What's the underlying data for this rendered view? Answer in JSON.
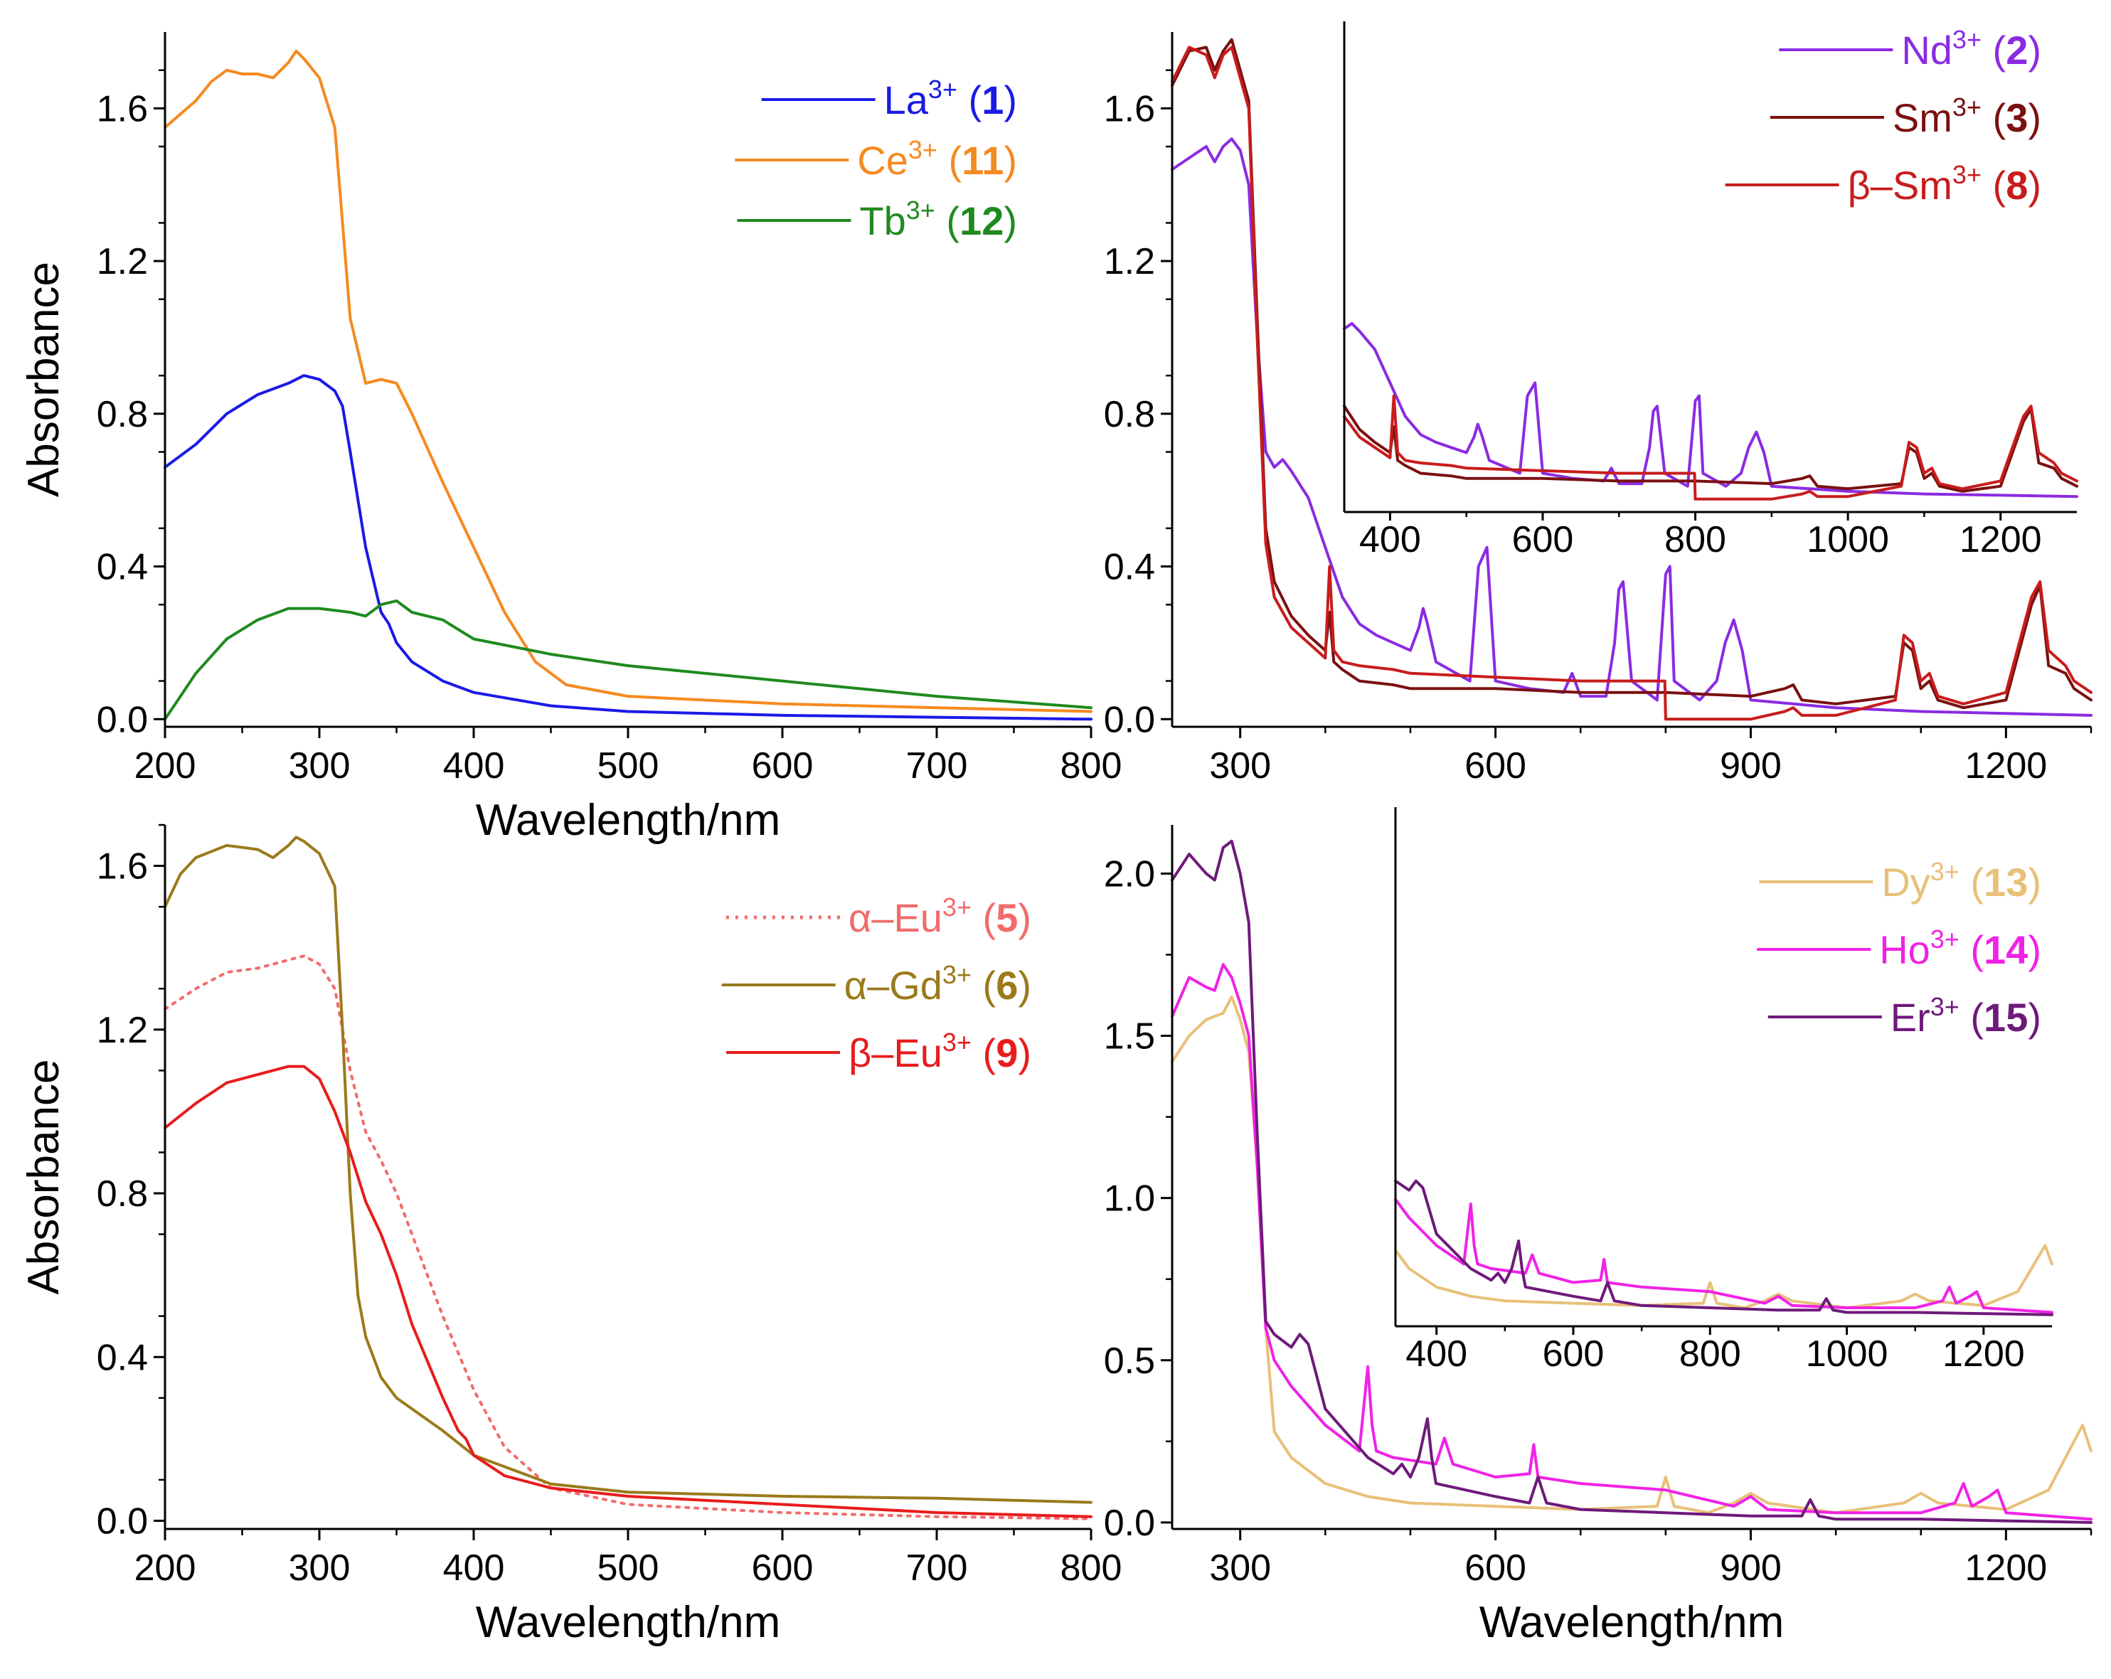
{
  "chart_data": [
    {
      "type": "line",
      "panel": "top-left",
      "xlabel": "Wavelength/nm",
      "ylabel": "Absorbance",
      "xlim": [
        200,
        800
      ],
      "ylim": [
        -0.02,
        1.8
      ],
      "xticks": [
        200,
        300,
        400,
        500,
        600,
        700,
        800
      ],
      "xtick_labels": [
        "200",
        "300",
        "400",
        "500",
        "600",
        "700",
        "800"
      ],
      "yticks": [
        0.0,
        0.4,
        0.8,
        1.2,
        1.6
      ],
      "ytick_labels": [
        "0.0",
        "0.4",
        "0.8",
        "1.2",
        "1.6"
      ],
      "legend_position": "top-right",
      "series": [
        {
          "name": "La",
          "sup": "3+",
          "num": "1",
          "prefix": "",
          "color": "#1a1ae6",
          "dash": "",
          "x": [
            200,
            220,
            240,
            260,
            280,
            290,
            300,
            310,
            315,
            320,
            330,
            340,
            345,
            350,
            360,
            380,
            400,
            450,
            500,
            600,
            700,
            800
          ],
          "y": [
            0.66,
            0.72,
            0.8,
            0.85,
            0.88,
            0.9,
            0.89,
            0.86,
            0.82,
            0.7,
            0.45,
            0.28,
            0.25,
            0.2,
            0.15,
            0.1,
            0.07,
            0.035,
            0.02,
            0.01,
            0.005,
            0.0
          ]
        },
        {
          "name": "Ce",
          "sup": "3+",
          "num": "11",
          "prefix": "",
          "color": "#f58a1f",
          "dash": "",
          "x": [
            200,
            220,
            230,
            240,
            250,
            260,
            270,
            280,
            285,
            290,
            300,
            310,
            315,
            320,
            330,
            340,
            350,
            360,
            380,
            400,
            420,
            440,
            460,
            500,
            600,
            700,
            800
          ],
          "y": [
            1.55,
            1.62,
            1.67,
            1.7,
            1.69,
            1.69,
            1.68,
            1.72,
            1.75,
            1.73,
            1.68,
            1.55,
            1.3,
            1.05,
            0.88,
            0.89,
            0.88,
            0.8,
            0.62,
            0.45,
            0.28,
            0.15,
            0.09,
            0.06,
            0.04,
            0.03,
            0.02
          ]
        },
        {
          "name": "Tb",
          "sup": "3+",
          "num": "12",
          "prefix": "",
          "color": "#1f8a1f",
          "dash": "",
          "x": [
            200,
            210,
            220,
            240,
            260,
            280,
            300,
            320,
            330,
            340,
            350,
            360,
            380,
            400,
            450,
            500,
            600,
            700,
            800
          ],
          "y": [
            0.0,
            0.06,
            0.12,
            0.21,
            0.26,
            0.29,
            0.29,
            0.28,
            0.27,
            0.3,
            0.31,
            0.28,
            0.26,
            0.21,
            0.17,
            0.14,
            0.1,
            0.06,
            0.03
          ]
        }
      ]
    },
    {
      "type": "line",
      "panel": "top-right",
      "xlabel": "",
      "ylabel": "",
      "xlim": [
        220,
        1300
      ],
      "ylim": [
        -0.02,
        1.8
      ],
      "xticks": [
        300,
        600,
        900,
        1200
      ],
      "xtick_labels": [
        "300",
        "600",
        "900",
        "1200"
      ],
      "yticks": [
        0.0,
        0.4,
        0.8,
        1.2,
        1.6
      ],
      "ytick_labels": [
        "0.0",
        "0.4",
        "0.8",
        "1.2",
        "1.6"
      ],
      "legend_position": "top-right",
      "inset": {
        "xlim": [
          340,
          1300
        ],
        "xticks": [
          400,
          600,
          800,
          1000,
          1200
        ],
        "xtick_labels": [
          "400",
          "600",
          "800",
          "1000",
          "1200"
        ]
      },
      "series": [
        {
          "name": "Nd",
          "sup": "3+",
          "num": "2",
          "prefix": "",
          "color": "#8a2be2",
          "dash": "",
          "x": [
            220,
            240,
            260,
            270,
            280,
            290,
            300,
            310,
            320,
            330,
            340,
            350,
            360,
            380,
            400,
            420,
            440,
            460,
            480,
            500,
            510,
            515,
            520,
            530,
            570,
            580,
            590,
            600,
            640,
            680,
            690,
            700,
            730,
            740,
            745,
            750,
            760,
            790,
            800,
            805,
            810,
            840,
            860,
            870,
            880,
            890,
            900,
            950,
            1000,
            1100,
            1200,
            1300
          ],
          "y": [
            1.44,
            1.47,
            1.5,
            1.46,
            1.5,
            1.52,
            1.49,
            1.4,
            1.0,
            0.7,
            0.66,
            0.68,
            0.65,
            0.58,
            0.45,
            0.32,
            0.25,
            0.22,
            0.2,
            0.18,
            0.24,
            0.29,
            0.25,
            0.15,
            0.1,
            0.4,
            0.45,
            0.1,
            0.08,
            0.07,
            0.12,
            0.06,
            0.06,
            0.2,
            0.34,
            0.36,
            0.1,
            0.05,
            0.38,
            0.4,
            0.1,
            0.05,
            0.1,
            0.2,
            0.26,
            0.18,
            0.05,
            0.04,
            0.03,
            0.02,
            0.015,
            0.01
          ]
        },
        {
          "name": "Sm",
          "sup": "3+",
          "num": "3",
          "prefix": "",
          "color": "#7a1010",
          "dash": "",
          "x": [
            220,
            240,
            260,
            270,
            280,
            290,
            300,
            310,
            320,
            330,
            340,
            360,
            380,
            400,
            405,
            410,
            420,
            440,
            480,
            500,
            600,
            700,
            800,
            900,
            940,
            950,
            960,
            1000,
            1070,
            1080,
            1090,
            1100,
            1110,
            1120,
            1150,
            1200,
            1230,
            1240,
            1250,
            1270,
            1280,
            1300
          ],
          "y": [
            1.66,
            1.75,
            1.76,
            1.7,
            1.75,
            1.78,
            1.7,
            1.62,
            1.05,
            0.5,
            0.36,
            0.27,
            0.22,
            0.18,
            0.28,
            0.15,
            0.13,
            0.1,
            0.09,
            0.08,
            0.08,
            0.07,
            0.07,
            0.06,
            0.08,
            0.09,
            0.05,
            0.04,
            0.06,
            0.2,
            0.18,
            0.08,
            0.1,
            0.05,
            0.03,
            0.05,
            0.3,
            0.35,
            0.14,
            0.12,
            0.08,
            0.05
          ]
        },
        {
          "name": "Sm",
          "sup": "3+",
          "num": "8",
          "prefix": "β–",
          "color": "#c81c1c",
          "dash": "",
          "x": [
            220,
            240,
            260,
            270,
            280,
            290,
            300,
            310,
            320,
            330,
            340,
            360,
            380,
            400,
            405,
            410,
            420,
            440,
            480,
            500,
            600,
            700,
            799,
            800,
            850,
            900,
            940,
            950,
            960,
            1000,
            1070,
            1080,
            1090,
            1100,
            1110,
            1120,
            1150,
            1200,
            1230,
            1240,
            1250,
            1270,
            1280,
            1300
          ],
          "y": [
            1.67,
            1.76,
            1.74,
            1.68,
            1.74,
            1.76,
            1.68,
            1.6,
            1.0,
            0.46,
            0.32,
            0.24,
            0.2,
            0.16,
            0.4,
            0.18,
            0.15,
            0.14,
            0.13,
            0.12,
            0.11,
            0.1,
            0.1,
            0.0,
            0.0,
            0.0,
            0.02,
            0.03,
            0.01,
            0.01,
            0.05,
            0.22,
            0.2,
            0.1,
            0.12,
            0.06,
            0.04,
            0.07,
            0.32,
            0.36,
            0.18,
            0.14,
            0.1,
            0.07
          ]
        }
      ]
    },
    {
      "type": "line",
      "panel": "bottom-left",
      "xlabel": "Wavelength/nm",
      "ylabel": "Absorbance",
      "xlim": [
        200,
        800
      ],
      "ylim": [
        -0.02,
        1.7
      ],
      "xticks": [
        200,
        300,
        400,
        500,
        600,
        700,
        800
      ],
      "xtick_labels": [
        "200",
        "300",
        "400",
        "500",
        "600",
        "700",
        "800"
      ],
      "yticks": [
        0.0,
        0.4,
        0.8,
        1.2,
        1.6
      ],
      "ytick_labels": [
        "0.0",
        "0.4",
        "0.8",
        "1.2",
        "1.6"
      ],
      "legend_position": "top-right",
      "series": [
        {
          "name": "Eu",
          "sup": "3+",
          "num": "5",
          "prefix": "α–",
          "color": "#f26b6b",
          "dash": "4 9",
          "x": [
            200,
            220,
            240,
            260,
            280,
            290,
            300,
            310,
            320,
            330,
            340,
            350,
            360,
            380,
            400,
            420,
            450,
            500,
            600,
            700,
            800
          ],
          "y": [
            1.25,
            1.3,
            1.34,
            1.35,
            1.37,
            1.38,
            1.36,
            1.3,
            1.1,
            0.95,
            0.88,
            0.8,
            0.7,
            0.5,
            0.32,
            0.18,
            0.08,
            0.04,
            0.02,
            0.01,
            0.005
          ]
        },
        {
          "name": "Gd",
          "sup": "3+",
          "num": "6",
          "prefix": "α–",
          "color": "#9a7a1a",
          "dash": "",
          "x": [
            200,
            210,
            220,
            240,
            260,
            270,
            280,
            285,
            290,
            300,
            310,
            315,
            320,
            325,
            330,
            340,
            350,
            380,
            400,
            450,
            500,
            600,
            700,
            800
          ],
          "y": [
            1.5,
            1.58,
            1.62,
            1.65,
            1.64,
            1.62,
            1.65,
            1.67,
            1.66,
            1.63,
            1.55,
            1.2,
            0.8,
            0.55,
            0.45,
            0.35,
            0.3,
            0.22,
            0.16,
            0.09,
            0.07,
            0.06,
            0.055,
            0.045
          ]
        },
        {
          "name": "Eu",
          "sup": "3+",
          "num": "9",
          "prefix": "β–",
          "color": "#e81c1c",
          "dash": "",
          "x": [
            200,
            220,
            240,
            260,
            280,
            290,
            300,
            310,
            320,
            330,
            340,
            350,
            360,
            380,
            390,
            395,
            400,
            420,
            450,
            500,
            600,
            700,
            800
          ],
          "y": [
            0.96,
            1.02,
            1.07,
            1.09,
            1.11,
            1.11,
            1.08,
            1.0,
            0.9,
            0.78,
            0.7,
            0.6,
            0.48,
            0.3,
            0.22,
            0.2,
            0.16,
            0.11,
            0.08,
            0.06,
            0.04,
            0.02,
            0.01
          ]
        }
      ]
    },
    {
      "type": "line",
      "panel": "bottom-right",
      "xlabel": "Wavelength/nm",
      "ylabel": "",
      "xlim": [
        220,
        1300
      ],
      "ylim": [
        -0.02,
        2.15
      ],
      "xticks": [
        300,
        600,
        900,
        1200
      ],
      "xtick_labels": [
        "300",
        "600",
        "900",
        "1200"
      ],
      "yticks": [
        0.0,
        0.5,
        1.0,
        1.5,
        2.0
      ],
      "ytick_labels": [
        "0.0",
        "0.5",
        "1.0",
        "1.5",
        "2.0"
      ],
      "legend_position": "top-right",
      "inset": {
        "xlim": [
          340,
          1300
        ],
        "xticks": [
          400,
          600,
          800,
          1000,
          1200
        ],
        "xtick_labels": [
          "400",
          "600",
          "800",
          "1000",
          "1200"
        ]
      },
      "series": [
        {
          "name": "Dy",
          "sup": "3+",
          "num": "13",
          "prefix": "",
          "color": "#e8c078",
          "dash": "",
          "x": [
            220,
            240,
            260,
            280,
            290,
            300,
            310,
            320,
            330,
            340,
            360,
            400,
            450,
            500,
            600,
            700,
            790,
            800,
            810,
            850,
            880,
            900,
            920,
            1000,
            1080,
            1100,
            1120,
            1200,
            1250,
            1270,
            1290,
            1300
          ],
          "y": [
            1.42,
            1.5,
            1.55,
            1.57,
            1.62,
            1.55,
            1.45,
            1.1,
            0.6,
            0.28,
            0.2,
            0.12,
            0.08,
            0.06,
            0.05,
            0.04,
            0.05,
            0.14,
            0.05,
            0.03,
            0.06,
            0.09,
            0.06,
            0.03,
            0.06,
            0.09,
            0.06,
            0.04,
            0.1,
            0.2,
            0.3,
            0.22
          ]
        },
        {
          "name": "Ho",
          "sup": "3+",
          "num": "14",
          "prefix": "",
          "color": "#f022e6",
          "dash": "",
          "x": [
            220,
            240,
            260,
            270,
            280,
            290,
            300,
            310,
            320,
            330,
            340,
            360,
            400,
            440,
            450,
            455,
            460,
            480,
            530,
            540,
            550,
            600,
            640,
            645,
            650,
            700,
            800,
            880,
            900,
            920,
            1000,
            1100,
            1140,
            1150,
            1160,
            1180,
            1190,
            1200,
            1300
          ],
          "y": [
            1.56,
            1.68,
            1.65,
            1.64,
            1.72,
            1.68,
            1.6,
            1.5,
            1.1,
            0.6,
            0.5,
            0.42,
            0.3,
            0.22,
            0.48,
            0.3,
            0.22,
            0.2,
            0.18,
            0.26,
            0.18,
            0.14,
            0.15,
            0.24,
            0.14,
            0.12,
            0.1,
            0.05,
            0.08,
            0.04,
            0.03,
            0.03,
            0.06,
            0.12,
            0.05,
            0.08,
            0.1,
            0.03,
            0.01
          ]
        },
        {
          "name": "Er",
          "sup": "3+",
          "num": "15",
          "prefix": "",
          "color": "#6e1a7a",
          "dash": "",
          "x": [
            220,
            240,
            260,
            270,
            280,
            290,
            300,
            310,
            320,
            330,
            340,
            360,
            370,
            380,
            390,
            400,
            450,
            480,
            490,
            500,
            510,
            520,
            525,
            530,
            600,
            640,
            650,
            660,
            700,
            800,
            900,
            960,
            970,
            980,
            1000,
            1100,
            1200,
            1300
          ],
          "y": [
            1.98,
            2.06,
            2.0,
            1.98,
            2.08,
            2.1,
            2.0,
            1.85,
            1.2,
            0.62,
            0.58,
            0.54,
            0.58,
            0.55,
            0.45,
            0.35,
            0.2,
            0.15,
            0.18,
            0.14,
            0.2,
            0.32,
            0.2,
            0.12,
            0.08,
            0.06,
            0.14,
            0.06,
            0.04,
            0.03,
            0.02,
            0.02,
            0.07,
            0.02,
            0.01,
            0.01,
            0.005,
            0.0
          ]
        }
      ]
    }
  ]
}
